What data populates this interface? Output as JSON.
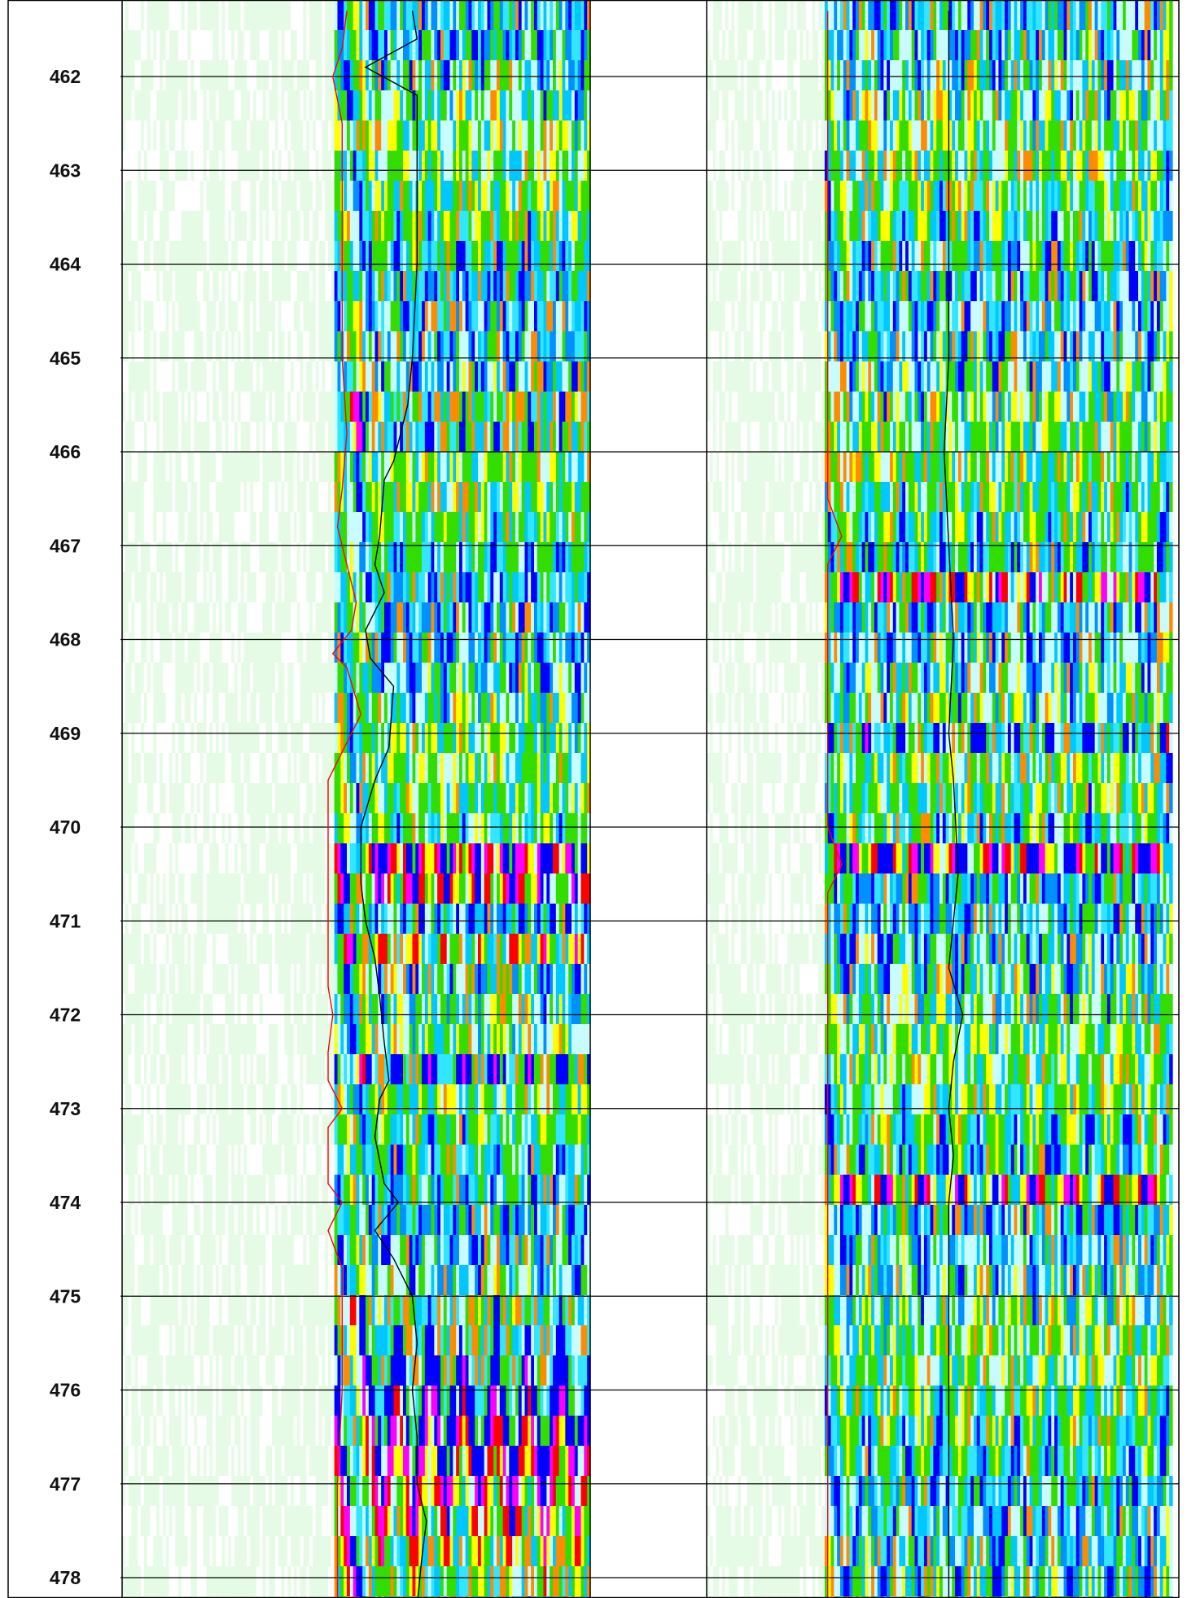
{
  "chart_data": {
    "type": "heatmap",
    "title": "",
    "ylabel": "",
    "ylim": [
      461.25,
      478.3
    ],
    "depth_axis": {
      "ticks": [
        462,
        463,
        464,
        465,
        466,
        467,
        468,
        469,
        470,
        471,
        472,
        473,
        474,
        475,
        476,
        477,
        478
      ],
      "labels": [
        "462",
        "463",
        "464",
        "465",
        "466",
        "467",
        "468",
        "469",
        "470",
        "471",
        "472",
        "473",
        "474",
        "475",
        "476",
        "477",
        "478"
      ],
      "direction": "increasing-downward",
      "grid": true
    },
    "colormap": [
      "#ffffff",
      "#e6fbe6",
      "#c9fcff",
      "#33e6ff",
      "#00c8ff",
      "#0090ff",
      "#0000ff",
      "#ff00ff",
      "#ff0000",
      "#ff8c00",
      "#ffff00",
      "#33dd00"
    ],
    "tracks": [
      {
        "id": "left-track",
        "curves": [
          {
            "color": "#ff0000",
            "points": [
              [
                461.3,
                0.48
              ],
              [
                461.7,
                0.47
              ],
              [
                462.0,
                0.45
              ],
              [
                462.5,
                0.47
              ],
              [
                463.0,
                0.47
              ],
              [
                464.0,
                0.47
              ],
              [
                465.0,
                0.47
              ],
              [
                465.8,
                0.48
              ],
              [
                466.4,
                0.47
              ],
              [
                466.8,
                0.46
              ],
              [
                467.2,
                0.48
              ],
              [
                467.6,
                0.5
              ],
              [
                467.9,
                0.49
              ],
              [
                468.15,
                0.45
              ],
              [
                468.3,
                0.48
              ],
              [
                468.8,
                0.51
              ],
              [
                469.1,
                0.48
              ],
              [
                469.5,
                0.44
              ],
              [
                470.0,
                0.44
              ],
              [
                471.0,
                0.44
              ],
              [
                471.7,
                0.44
              ],
              [
                472.0,
                0.45
              ],
              [
                472.4,
                0.44
              ],
              [
                472.7,
                0.44
              ],
              [
                473.0,
                0.47
              ],
              [
                473.2,
                0.44
              ],
              [
                473.8,
                0.44
              ],
              [
                474.0,
                0.47
              ],
              [
                474.3,
                0.44
              ],
              [
                474.7,
                0.47
              ],
              [
                475.0,
                0.47
              ],
              [
                476.0,
                0.47
              ],
              [
                477.0,
                0.46
              ],
              [
                478.0,
                0.46
              ],
              [
                478.3,
                0.46
              ]
            ]
          },
          {
            "color": "#000000",
            "points": [
              [
                461.3,
                0.62
              ],
              [
                461.6,
                0.63
              ],
              [
                461.9,
                0.52
              ],
              [
                462.2,
                0.63
              ],
              [
                462.8,
                0.63
              ],
              [
                464.0,
                0.63
              ],
              [
                465.0,
                0.62
              ],
              [
                465.5,
                0.61
              ],
              [
                465.9,
                0.59
              ],
              [
                466.1,
                0.58
              ],
              [
                466.3,
                0.56
              ],
              [
                466.9,
                0.55
              ],
              [
                467.2,
                0.54
              ],
              [
                467.5,
                0.56
              ],
              [
                467.9,
                0.52
              ],
              [
                468.2,
                0.53
              ],
              [
                468.5,
                0.58
              ],
              [
                469.15,
                0.57
              ],
              [
                469.5,
                0.54
              ],
              [
                470.0,
                0.51
              ],
              [
                470.6,
                0.51
              ],
              [
                471.0,
                0.52
              ],
              [
                471.4,
                0.54
              ],
              [
                471.8,
                0.55
              ],
              [
                472.3,
                0.56
              ],
              [
                472.7,
                0.57
              ],
              [
                472.9,
                0.55
              ],
              [
                473.3,
                0.54
              ],
              [
                473.8,
                0.56
              ],
              [
                474.0,
                0.59
              ],
              [
                474.3,
                0.54
              ],
              [
                474.6,
                0.58
              ],
              [
                475.0,
                0.62
              ],
              [
                475.5,
                0.63
              ],
              [
                476.0,
                0.62
              ],
              [
                476.5,
                0.63
              ],
              [
                477.0,
                0.63
              ],
              [
                477.4,
                0.65
              ],
              [
                477.8,
                0.64
              ],
              [
                478.3,
                0.63
              ]
            ]
          }
        ]
      },
      {
        "id": "right-track",
        "curves": [
          {
            "color": "#ff0000",
            "points": [
              [
                461.3,
                0.26
              ],
              [
                466.5,
                0.26
              ],
              [
                466.9,
                0.29
              ],
              [
                467.2,
                0.26
              ],
              [
                470.0,
                0.26
              ],
              [
                470.4,
                0.29
              ],
              [
                470.7,
                0.26
              ],
              [
                478.3,
                0.26
              ]
            ]
          },
          {
            "color": "#000000",
            "points": [
              [
                461.3,
                0.52
              ],
              [
                464.0,
                0.52
              ],
              [
                465.0,
                0.52
              ],
              [
                466.0,
                0.51
              ],
              [
                467.0,
                0.52
              ],
              [
                468.0,
                0.53
              ],
              [
                469.0,
                0.52
              ],
              [
                469.5,
                0.53
              ],
              [
                470.5,
                0.54
              ],
              [
                471.5,
                0.52
              ],
              [
                472.0,
                0.55
              ],
              [
                472.5,
                0.53
              ],
              [
                473.0,
                0.52
              ],
              [
                473.5,
                0.53
              ],
              [
                474.0,
                0.52
              ],
              [
                475.0,
                0.52
              ],
              [
                476.0,
                0.52
              ],
              [
                478.3,
                0.52
              ]
            ]
          }
        ]
      }
    ]
  }
}
